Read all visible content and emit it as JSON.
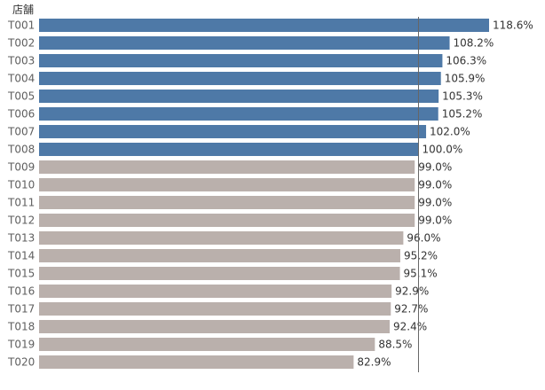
{
  "chart_data": {
    "type": "bar",
    "orientation": "horizontal",
    "category_header": "店舗",
    "categories": [
      "T001",
      "T002",
      "T003",
      "T004",
      "T005",
      "T006",
      "T007",
      "T008",
      "T009",
      "T010",
      "T011",
      "T012",
      "T013",
      "T014",
      "T015",
      "T016",
      "T017",
      "T018",
      "T019",
      "T020"
    ],
    "values": [
      118.6,
      108.2,
      106.3,
      105.9,
      105.3,
      105.2,
      102.0,
      100.0,
      99.0,
      99.0,
      99.0,
      99.0,
      96.0,
      95.2,
      95.1,
      92.9,
      92.7,
      92.4,
      88.5,
      82.9
    ],
    "value_labels": [
      "118.6%",
      "108.2%",
      "106.3%",
      "105.9%",
      "105.3%",
      "105.2%",
      "102.0%",
      "100.0%",
      "99.0%",
      "99.0%",
      "99.0%",
      "99.0%",
      "96.0%",
      "95.2%",
      "95.1%",
      "92.9%",
      "92.7%",
      "92.4%",
      "88.5%",
      "82.9%"
    ],
    "reference_line": 100,
    "colors": {
      "above_target": "#4e79a7",
      "below_target": "#bab0ac",
      "reference_line": "#666666"
    },
    "xlim": [
      0,
      118.6
    ],
    "grid": false,
    "legend": "none"
  }
}
